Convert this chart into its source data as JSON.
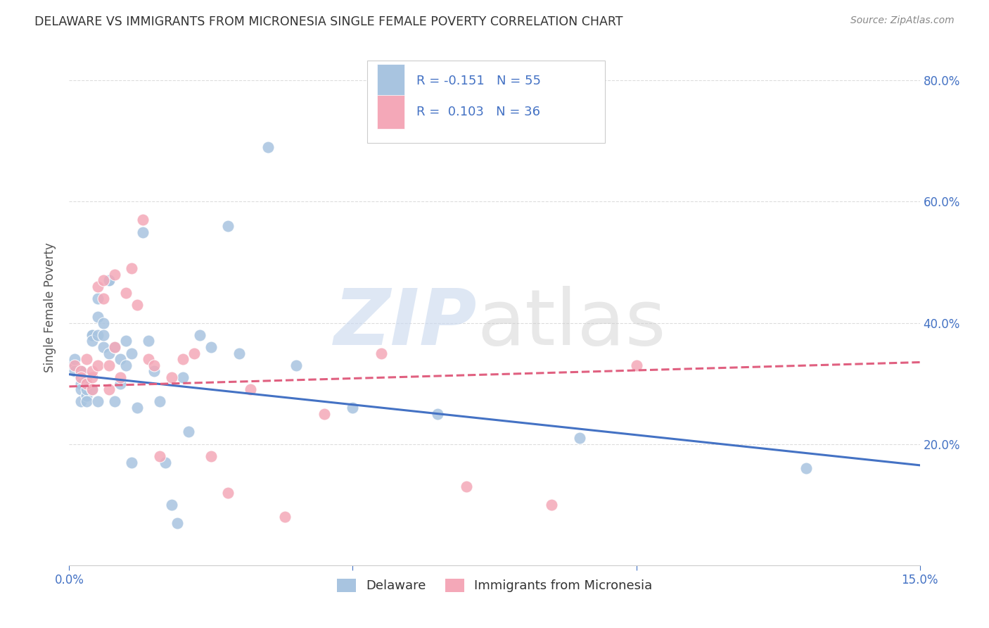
{
  "title": "DELAWARE VS IMMIGRANTS FROM MICRONESIA SINGLE FEMALE POVERTY CORRELATION CHART",
  "source": "Source: ZipAtlas.com",
  "ylabel": "Single Female Poverty",
  "legend_label1": "Delaware",
  "legend_label2": "Immigrants from Micronesia",
  "r1": "-0.151",
  "n1": "55",
  "r2": "0.103",
  "n2": "36",
  "color_blue": "#a8c4e0",
  "color_pink": "#f4a8b8",
  "line_blue": "#4472c4",
  "line_pink": "#e06080",
  "xlim": [
    0.0,
    0.15
  ],
  "ylim": [
    0.0,
    0.85
  ],
  "blue_scatter_x": [
    0.0,
    0.001,
    0.001,
    0.002,
    0.002,
    0.002,
    0.002,
    0.002,
    0.003,
    0.003,
    0.003,
    0.003,
    0.003,
    0.004,
    0.004,
    0.004,
    0.004,
    0.005,
    0.005,
    0.005,
    0.005,
    0.006,
    0.006,
    0.006,
    0.007,
    0.007,
    0.007,
    0.008,
    0.008,
    0.009,
    0.009,
    0.01,
    0.01,
    0.011,
    0.011,
    0.012,
    0.013,
    0.014,
    0.015,
    0.016,
    0.017,
    0.018,
    0.019,
    0.02,
    0.021,
    0.023,
    0.025,
    0.028,
    0.03,
    0.035,
    0.04,
    0.05,
    0.065,
    0.09,
    0.13
  ],
  "blue_scatter_y": [
    0.33,
    0.32,
    0.34,
    0.31,
    0.32,
    0.3,
    0.29,
    0.27,
    0.31,
    0.28,
    0.28,
    0.29,
    0.27,
    0.29,
    0.38,
    0.38,
    0.37,
    0.41,
    0.38,
    0.44,
    0.27,
    0.36,
    0.4,
    0.38,
    0.47,
    0.47,
    0.35,
    0.36,
    0.27,
    0.34,
    0.3,
    0.37,
    0.33,
    0.35,
    0.17,
    0.26,
    0.55,
    0.37,
    0.32,
    0.27,
    0.17,
    0.1,
    0.07,
    0.31,
    0.22,
    0.38,
    0.36,
    0.56,
    0.35,
    0.69,
    0.33,
    0.26,
    0.25,
    0.21,
    0.16
  ],
  "pink_scatter_x": [
    0.001,
    0.002,
    0.002,
    0.003,
    0.003,
    0.004,
    0.004,
    0.004,
    0.005,
    0.005,
    0.006,
    0.006,
    0.007,
    0.007,
    0.008,
    0.008,
    0.009,
    0.01,
    0.011,
    0.012,
    0.013,
    0.014,
    0.015,
    0.016,
    0.018,
    0.02,
    0.022,
    0.025,
    0.028,
    0.032,
    0.038,
    0.045,
    0.055,
    0.07,
    0.085,
    0.1
  ],
  "pink_scatter_y": [
    0.33,
    0.32,
    0.31,
    0.3,
    0.34,
    0.31,
    0.32,
    0.29,
    0.33,
    0.46,
    0.44,
    0.47,
    0.29,
    0.33,
    0.48,
    0.36,
    0.31,
    0.45,
    0.49,
    0.43,
    0.57,
    0.34,
    0.33,
    0.18,
    0.31,
    0.34,
    0.35,
    0.18,
    0.12,
    0.29,
    0.08,
    0.25,
    0.35,
    0.13,
    0.1,
    0.33
  ],
  "blue_trend_x": [
    0.0,
    0.15
  ],
  "blue_trend_y": [
    0.315,
    0.165
  ],
  "pink_trend_x": [
    0.0,
    0.15
  ],
  "pink_trend_y": [
    0.295,
    0.335
  ],
  "background_color": "#ffffff",
  "grid_color": "#dddddd"
}
